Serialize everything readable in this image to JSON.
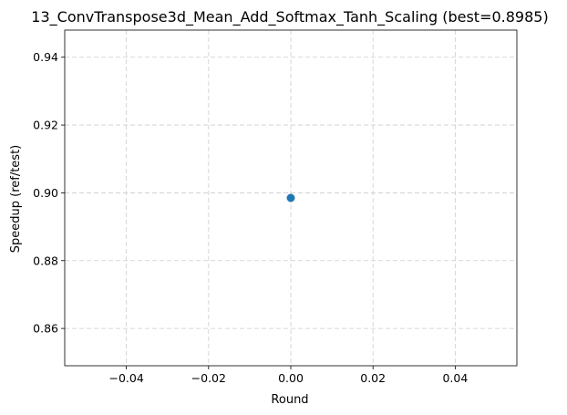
{
  "chart_data": {
    "type": "scatter",
    "title": "13_ConvTranspose3d_Mean_Add_Softmax_Tanh_Scaling (best=0.8985)",
    "xlabel": "Round",
    "ylabel": "Speedup (ref/test)",
    "xlim": [
      -0.055,
      0.055
    ],
    "ylim": [
      0.849,
      0.948
    ],
    "xticks": [
      -0.04,
      -0.02,
      0.0,
      0.02,
      0.04
    ],
    "xtick_labels": [
      "−0.04",
      "−0.02",
      "0.00",
      "0.02",
      "0.04"
    ],
    "yticks": [
      0.86,
      0.88,
      0.9,
      0.92,
      0.94
    ],
    "ytick_labels": [
      "0.86",
      "0.88",
      "0.90",
      "0.92",
      "0.94"
    ],
    "grid": true,
    "series": [
      {
        "x": [
          0
        ],
        "y": [
          0.8985
        ],
        "color": "#1f77b4"
      }
    ]
  }
}
